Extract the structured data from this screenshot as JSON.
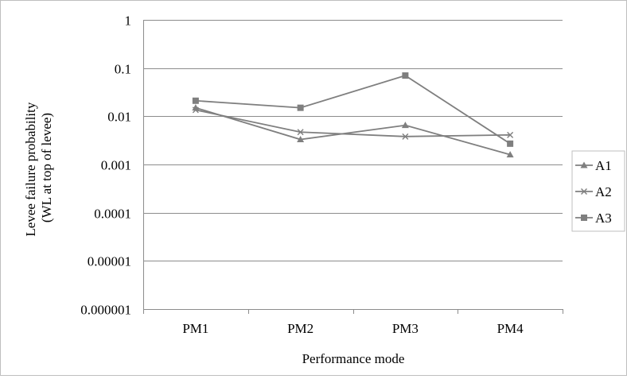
{
  "chart_data": {
    "type": "line",
    "title": "",
    "xlabel": "Performance mode",
    "ylabel_lines": [
      "Levee failure probability",
      "(WL at top of levee)"
    ],
    "yscale": "log",
    "ylim": [
      1e-06,
      1
    ],
    "y_tick_values": [
      1,
      0.1,
      0.01,
      0.001,
      0.0001,
      1e-05,
      1e-06
    ],
    "y_tick_labels": [
      "1",
      "0.1",
      "0.01",
      "0.001",
      "0.0001",
      "0.00001",
      "0.000001"
    ],
    "categories": [
      "PM1",
      "PM2",
      "PM3",
      "PM4"
    ],
    "grid": true,
    "legend_position": "right",
    "line_color": "#7f7f7f",
    "series": [
      {
        "name": "A1",
        "marker": "triangle",
        "values": [
          0.015,
          0.0033,
          0.0065,
          0.0016
        ]
      },
      {
        "name": "A2",
        "marker": "x",
        "values": [
          0.0135,
          0.0047,
          0.0038,
          0.0041
        ]
      },
      {
        "name": "A3",
        "marker": "square",
        "values": [
          0.021,
          0.015,
          0.07,
          0.0027
        ]
      }
    ]
  }
}
